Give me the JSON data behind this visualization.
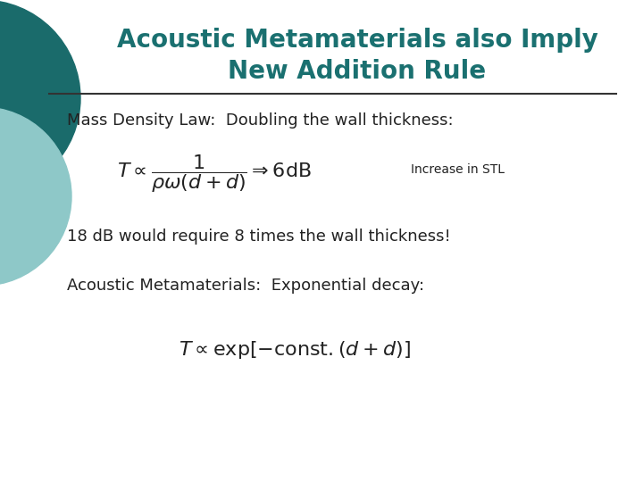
{
  "title_line1": "Acoustic Metamaterials also Imply",
  "title_line2": "New Addition Rule",
  "title_color": "#1a7070",
  "title_fontsize": 20,
  "bg_color": "#ffffff",
  "subtitle_text": "Mass Density Law:  Doubling the wall thickness:",
  "subtitle_fontsize": 13,
  "formula1_annotation": "Increase in STL",
  "formula1_annotation_fontsize": 10,
  "body_text1": "18 dB would require 8 times the wall thickness!",
  "body_text1_fontsize": 13,
  "subtitle2": "Acoustic Metamaterials:  Exponential decay:",
  "subtitle2_fontsize": 13,
  "formula_fontsize": 16,
  "line_color": "#333333",
  "circle_color1": "#1a6b6b",
  "circle_color2": "#8ec8c8",
  "text_color": "#222222"
}
